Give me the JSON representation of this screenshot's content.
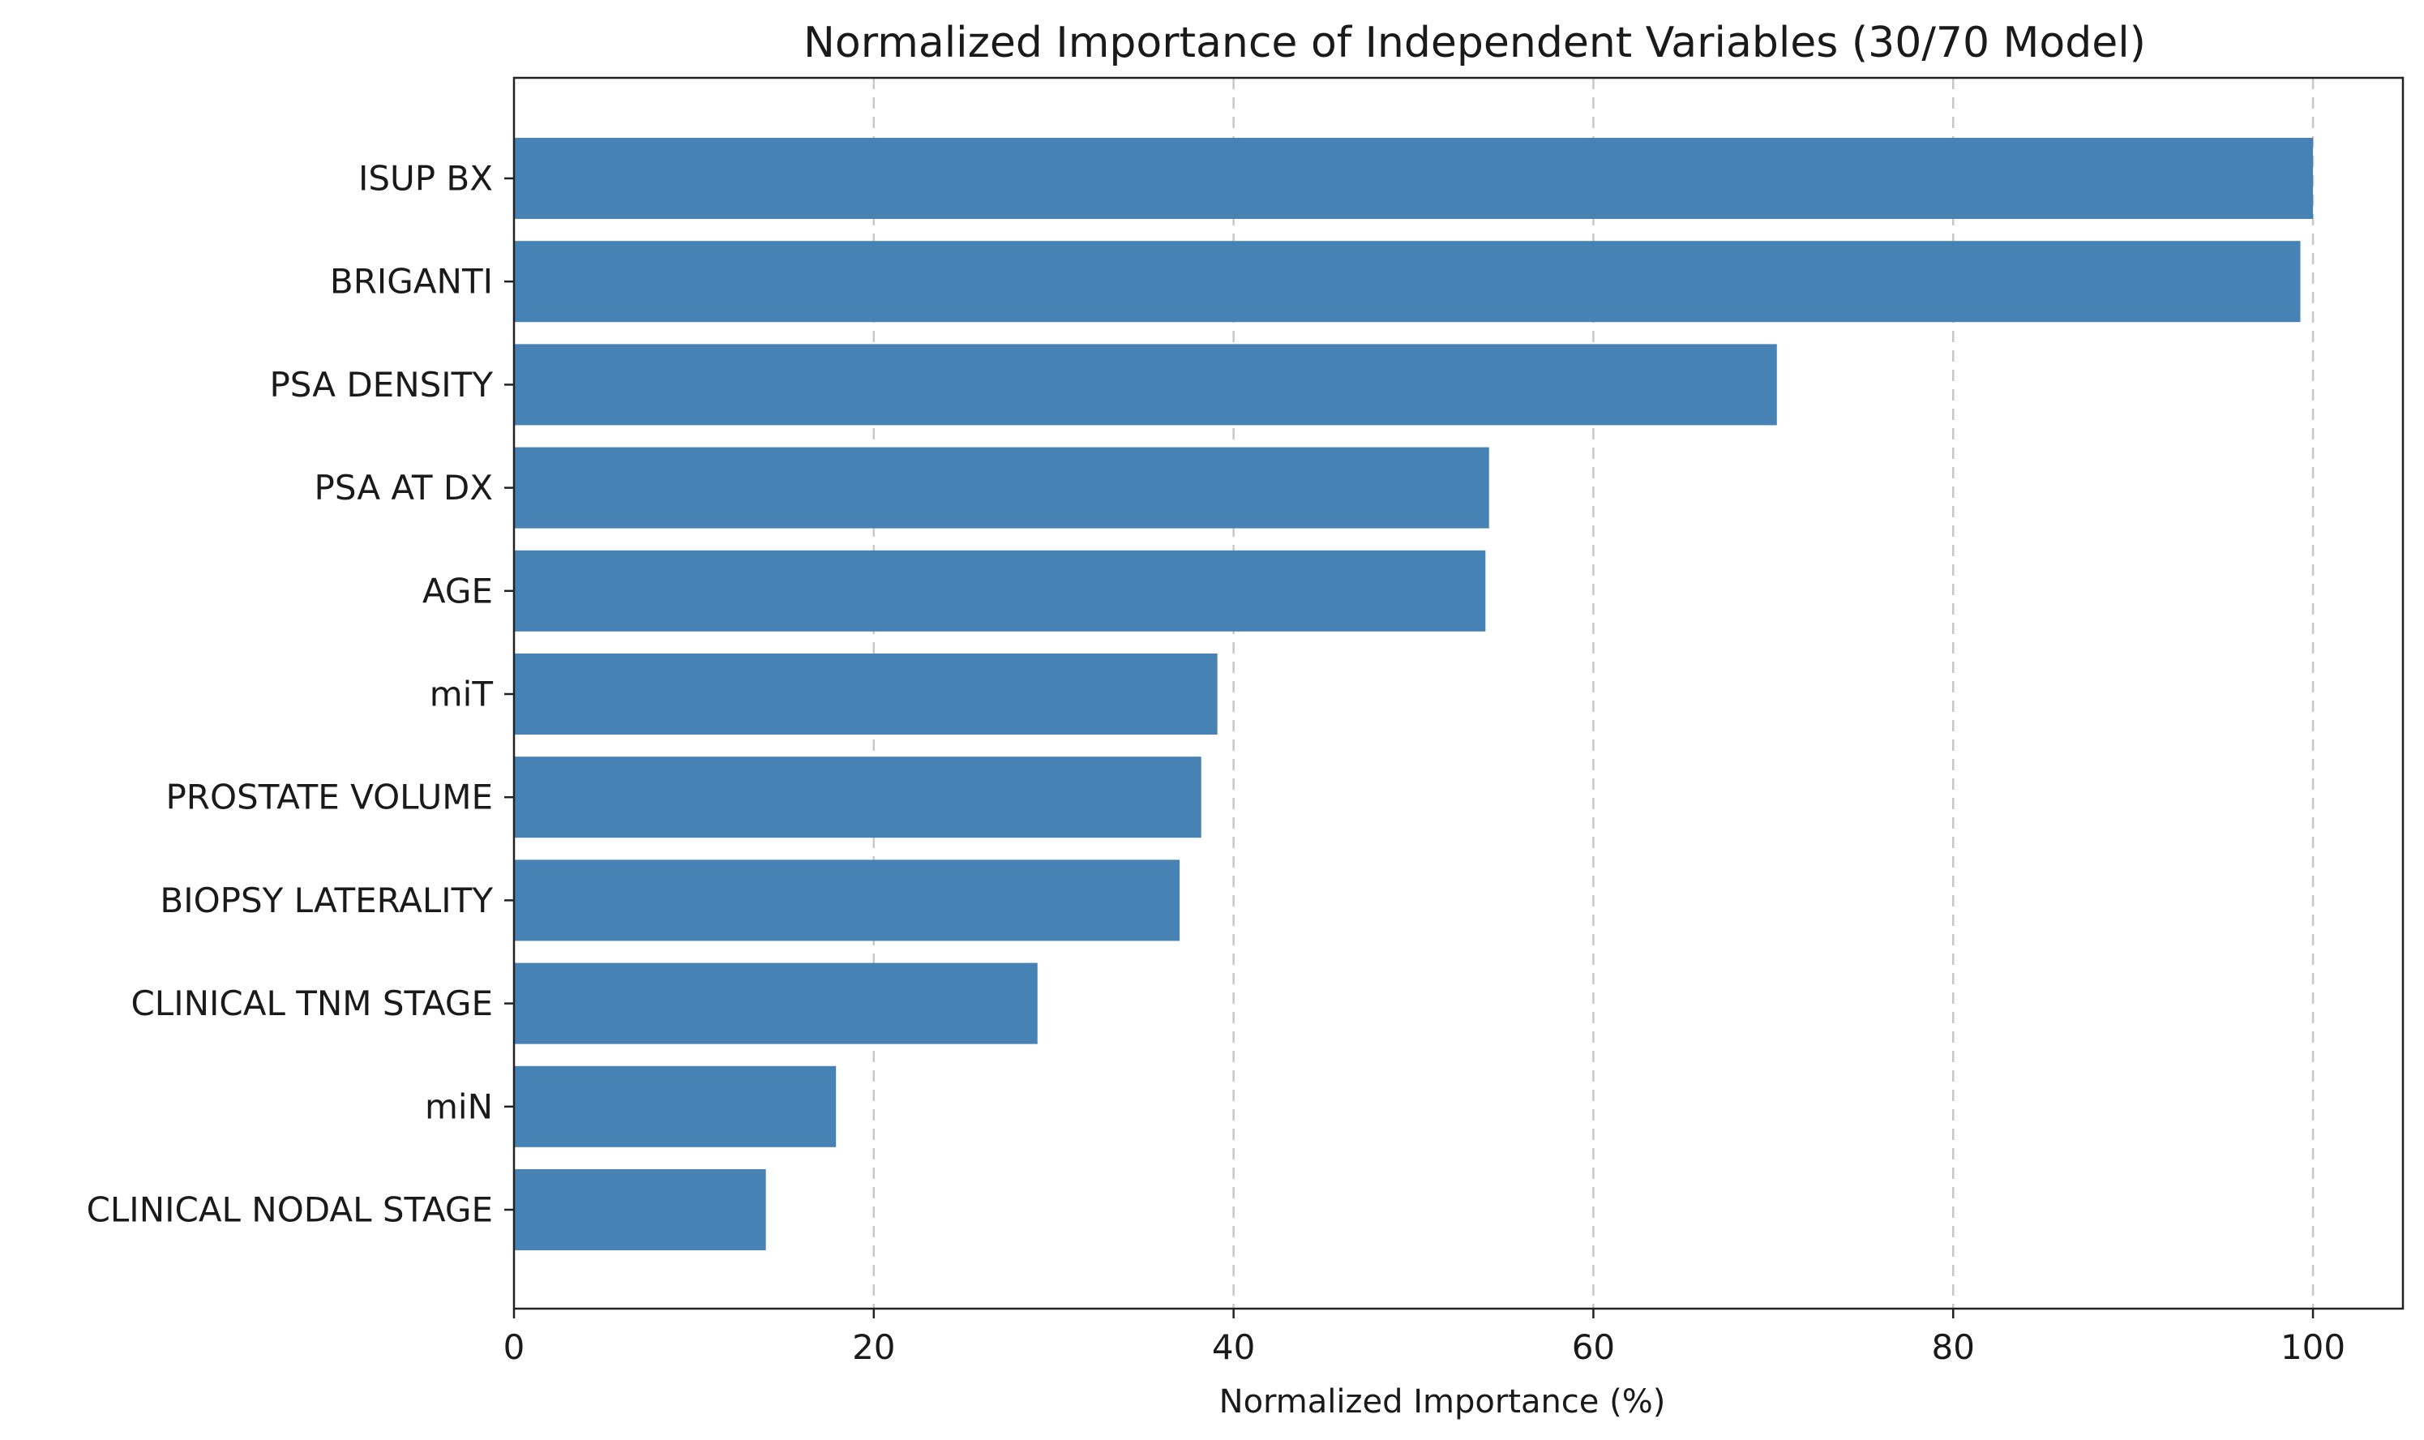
{
  "chart_data": {
    "type": "bar",
    "orientation": "horizontal",
    "title": "Normalized Importance of Independent Variables (30/70 Model)",
    "xlabel": "Normalized Importance (%)",
    "ylabel": "",
    "categories": [
      "ISUP BX",
      "BRIGANTI",
      "PSA DENSITY",
      "PSA AT DX",
      "AGE",
      "miT",
      "PROSTATE VOLUME",
      "BIOPSY LATERALITY",
      "CLINICAL TNM STAGE",
      "miN",
      "CLINICAL NODAL STAGE"
    ],
    "values": [
      100,
      99.3,
      70.2,
      54.2,
      54.0,
      39.1,
      38.2,
      37.0,
      29.1,
      17.9,
      14.0
    ],
    "xlim": [
      0,
      105
    ],
    "xticks": [
      0,
      20,
      40,
      60,
      80,
      100
    ],
    "grid": "x-dashed",
    "bar_color": "#4682b4"
  }
}
